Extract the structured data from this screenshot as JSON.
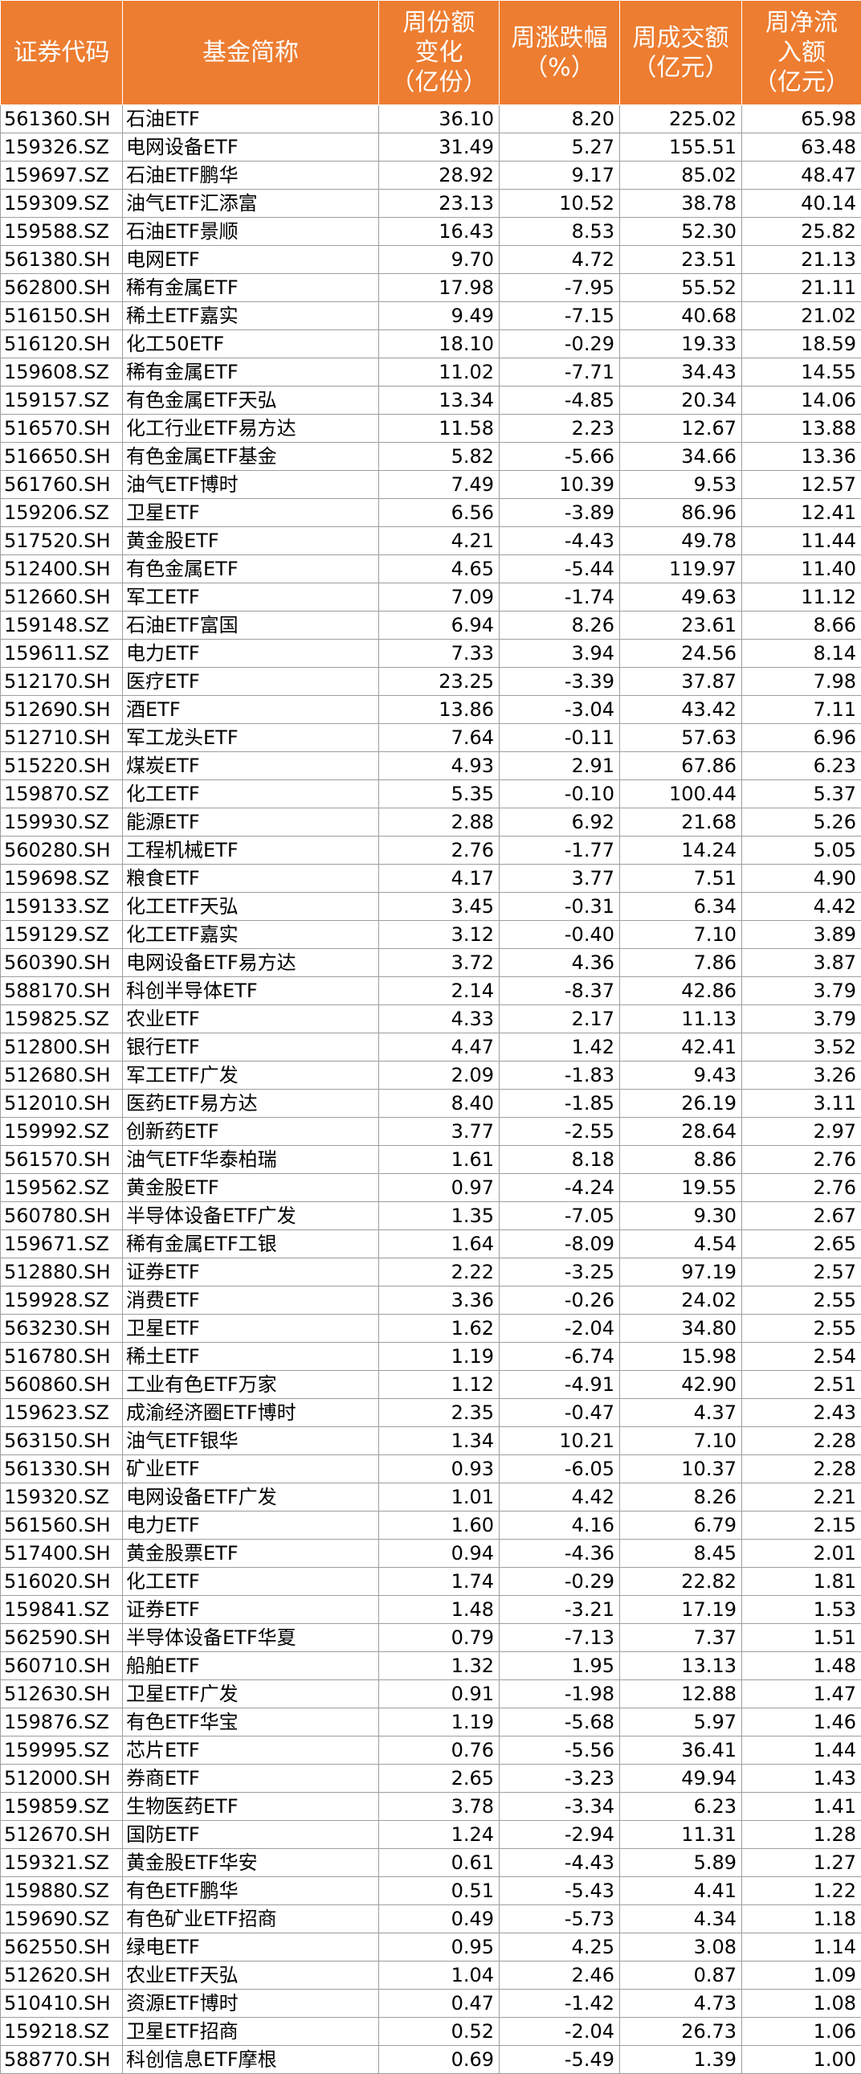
{
  "header": {
    "code": "证券代码",
    "name": "基金简称",
    "share_change": [
      "周份额",
      "变化",
      "（亿份）"
    ],
    "weekly_change": [
      "周涨跌幅",
      "（%）"
    ],
    "turnover": [
      "周成交额",
      "（亿元）"
    ],
    "net_inflow": [
      "周净流",
      "入额",
      "（亿元）"
    ]
  },
  "rows": [
    [
      "561360.SH",
      "石油ETF",
      "36.10",
      "8.20",
      "225.02",
      "65.98"
    ],
    [
      "159326.SZ",
      "电网设备ETF",
      "31.49",
      "5.27",
      "155.51",
      "63.48"
    ],
    [
      "159697.SZ",
      "石油ETF鹏华",
      "28.92",
      "9.17",
      "85.02",
      "48.47"
    ],
    [
      "159309.SZ",
      "油气ETF汇添富",
      "23.13",
      "10.52",
      "38.78",
      "40.14"
    ],
    [
      "159588.SZ",
      "石油ETF景顺",
      "16.43",
      "8.53",
      "52.30",
      "25.82"
    ],
    [
      "561380.SH",
      "电网ETF",
      "9.70",
      "4.72",
      "23.51",
      "21.13"
    ],
    [
      "562800.SH",
      "稀有金属ETF",
      "17.98",
      "-7.95",
      "55.52",
      "21.11"
    ],
    [
      "516150.SH",
      "稀土ETF嘉实",
      "9.49",
      "-7.15",
      "40.68",
      "21.02"
    ],
    [
      "516120.SH",
      "化工50ETF",
      "18.10",
      "-0.29",
      "19.33",
      "18.59"
    ],
    [
      "159608.SZ",
      "稀有金属ETF",
      "11.02",
      "-7.71",
      "34.43",
      "14.55"
    ],
    [
      "159157.SZ",
      "有色金属ETF天弘",
      "13.34",
      "-4.85",
      "20.34",
      "14.06"
    ],
    [
      "516570.SH",
      "化工行业ETF易方达",
      "11.58",
      "2.23",
      "12.67",
      "13.88"
    ],
    [
      "516650.SH",
      "有色金属ETF基金",
      "5.82",
      "-5.66",
      "34.66",
      "13.36"
    ],
    [
      "561760.SH",
      "油气ETF博时",
      "7.49",
      "10.39",
      "9.53",
      "12.57"
    ],
    [
      "159206.SZ",
      "卫星ETF",
      "6.56",
      "-3.89",
      "86.96",
      "12.41"
    ],
    [
      "517520.SH",
      "黄金股ETF",
      "4.21",
      "-4.43",
      "49.78",
      "11.44"
    ],
    [
      "512400.SH",
      "有色金属ETF",
      "4.65",
      "-5.44",
      "119.97",
      "11.40"
    ],
    [
      "512660.SH",
      "军工ETF",
      "7.09",
      "-1.74",
      "49.63",
      "11.12"
    ],
    [
      "159148.SZ",
      "石油ETF富国",
      "6.94",
      "8.26",
      "23.61",
      "8.66"
    ],
    [
      "159611.SZ",
      "电力ETF",
      "7.33",
      "3.94",
      "24.56",
      "8.14"
    ],
    [
      "512170.SH",
      "医疗ETF",
      "23.25",
      "-3.39",
      "37.87",
      "7.98"
    ],
    [
      "512690.SH",
      "酒ETF",
      "13.86",
      "-3.04",
      "43.42",
      "7.11"
    ],
    [
      "512710.SH",
      "军工龙头ETF",
      "7.64",
      "-0.11",
      "57.63",
      "6.96"
    ],
    [
      "515220.SH",
      "煤炭ETF",
      "4.93",
      "2.91",
      "67.86",
      "6.23"
    ],
    [
      "159870.SZ",
      "化工ETF",
      "5.35",
      "-0.10",
      "100.44",
      "5.37"
    ],
    [
      "159930.SZ",
      "能源ETF",
      "2.88",
      "6.92",
      "21.68",
      "5.26"
    ],
    [
      "560280.SH",
      "工程机械ETF",
      "2.76",
      "-1.77",
      "14.24",
      "5.05"
    ],
    [
      "159698.SZ",
      "粮食ETF",
      "4.17",
      "3.77",
      "7.51",
      "4.90"
    ],
    [
      "159133.SZ",
      "化工ETF天弘",
      "3.45",
      "-0.31",
      "6.34",
      "4.42"
    ],
    [
      "159129.SZ",
      "化工ETF嘉实",
      "3.12",
      "-0.40",
      "7.10",
      "3.89"
    ],
    [
      "560390.SH",
      "电网设备ETF易方达",
      "3.72",
      "4.36",
      "7.86",
      "3.87"
    ],
    [
      "588170.SH",
      "科创半导体ETF",
      "2.14",
      "-8.37",
      "42.86",
      "3.79"
    ],
    [
      "159825.SZ",
      "农业ETF",
      "4.33",
      "2.17",
      "11.13",
      "3.79"
    ],
    [
      "512800.SH",
      "银行ETF",
      "4.47",
      "1.42",
      "42.41",
      "3.52"
    ],
    [
      "512680.SH",
      "军工ETF广发",
      "2.09",
      "-1.83",
      "9.43",
      "3.26"
    ],
    [
      "512010.SH",
      "医药ETF易方达",
      "8.40",
      "-1.85",
      "26.19",
      "3.11"
    ],
    [
      "159992.SZ",
      "创新药ETF",
      "3.77",
      "-2.55",
      "28.64",
      "2.97"
    ],
    [
      "561570.SH",
      "油气ETF华泰柏瑞",
      "1.61",
      "8.18",
      "8.86",
      "2.76"
    ],
    [
      "159562.SZ",
      "黄金股ETF",
      "0.97",
      "-4.24",
      "19.55",
      "2.76"
    ],
    [
      "560780.SH",
      "半导体设备ETF广发",
      "1.35",
      "-7.05",
      "9.30",
      "2.67"
    ],
    [
      "159671.SZ",
      "稀有金属ETF工银",
      "1.64",
      "-8.09",
      "4.54",
      "2.65"
    ],
    [
      "512880.SH",
      "证券ETF",
      "2.22",
      "-3.25",
      "97.19",
      "2.57"
    ],
    [
      "159928.SZ",
      "消费ETF",
      "3.36",
      "-0.26",
      "24.02",
      "2.55"
    ],
    [
      "563230.SH",
      "卫星ETF",
      "1.62",
      "-2.04",
      "34.80",
      "2.55"
    ],
    [
      "516780.SH",
      "稀土ETF",
      "1.19",
      "-6.74",
      "15.98",
      "2.54"
    ],
    [
      "560860.SH",
      "工业有色ETF万家",
      "1.12",
      "-4.91",
      "42.90",
      "2.51"
    ],
    [
      "159623.SZ",
      "成渝经济圈ETF博时",
      "2.35",
      "-0.47",
      "4.37",
      "2.43"
    ],
    [
      "563150.SH",
      "油气ETF银华",
      "1.34",
      "10.21",
      "7.10",
      "2.28"
    ],
    [
      "561330.SH",
      "矿业ETF",
      "0.93",
      "-6.05",
      "10.37",
      "2.28"
    ],
    [
      "159320.SZ",
      "电网设备ETF广发",
      "1.01",
      "4.42",
      "8.26",
      "2.21"
    ],
    [
      "561560.SH",
      "电力ETF",
      "1.60",
      "4.16",
      "6.79",
      "2.15"
    ],
    [
      "517400.SH",
      "黄金股票ETF",
      "0.94",
      "-4.36",
      "8.45",
      "2.01"
    ],
    [
      "516020.SH",
      "化工ETF",
      "1.74",
      "-0.29",
      "22.82",
      "1.81"
    ],
    [
      "159841.SZ",
      "证券ETF",
      "1.48",
      "-3.21",
      "17.19",
      "1.53"
    ],
    [
      "562590.SH",
      "半导体设备ETF华夏",
      "0.79",
      "-7.13",
      "7.37",
      "1.51"
    ],
    [
      "560710.SH",
      "船舶ETF",
      "1.32",
      "1.95",
      "13.13",
      "1.48"
    ],
    [
      "512630.SH",
      "卫星ETF广发",
      "0.91",
      "-1.98",
      "12.88",
      "1.47"
    ],
    [
      "159876.SZ",
      "有色ETF华宝",
      "1.19",
      "-5.68",
      "5.97",
      "1.46"
    ],
    [
      "159995.SZ",
      "芯片ETF",
      "0.76",
      "-5.56",
      "36.41",
      "1.44"
    ],
    [
      "512000.SH",
      "券商ETF",
      "2.65",
      "-3.23",
      "49.94",
      "1.43"
    ],
    [
      "159859.SZ",
      "生物医药ETF",
      "3.78",
      "-3.34",
      "6.23",
      "1.41"
    ],
    [
      "512670.SH",
      "国防ETF",
      "1.24",
      "-2.94",
      "11.31",
      "1.28"
    ],
    [
      "159321.SZ",
      "黄金股ETF华安",
      "0.61",
      "-4.43",
      "5.89",
      "1.27"
    ],
    [
      "159880.SZ",
      "有色ETF鹏华",
      "0.51",
      "-5.43",
      "4.41",
      "1.22"
    ],
    [
      "159690.SZ",
      "有色矿业ETF招商",
      "0.49",
      "-5.73",
      "4.34",
      "1.18"
    ],
    [
      "562550.SH",
      "绿电ETF",
      "0.95",
      "4.25",
      "3.08",
      "1.14"
    ],
    [
      "512620.SH",
      "农业ETF天弘",
      "1.04",
      "2.46",
      "0.87",
      "1.09"
    ],
    [
      "510410.SH",
      "资源ETF博时",
      "0.47",
      "-1.42",
      "4.73",
      "1.08"
    ],
    [
      "159218.SZ",
      "卫星ETF招商",
      "0.52",
      "-2.04",
      "26.73",
      "1.06"
    ],
    [
      "588770.SH",
      "科创信息ETF摩根",
      "0.69",
      "-5.49",
      "1.39",
      "1.00"
    ]
  ],
  "colors": {
    "header_bg": "#ed7d31",
    "header_text": "#ffffff",
    "grid_line": "#9e9e9e"
  }
}
